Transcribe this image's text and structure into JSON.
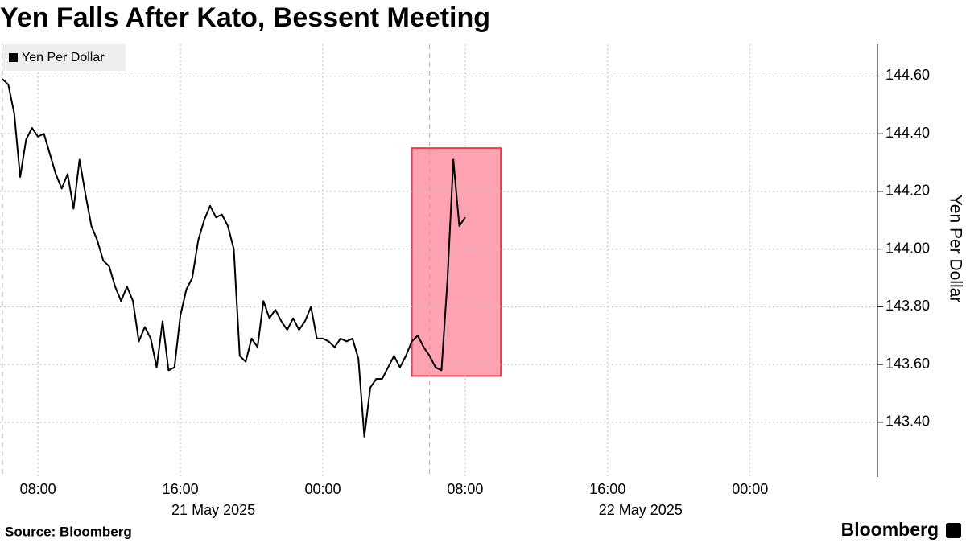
{
  "chart_data": {
    "type": "line",
    "title": "Yen Falls After Kato, Bessent Meeting",
    "y_label": "Yen Per Dollar",
    "source": "Source: Bloomberg",
    "brand": "Bloomberg",
    "legend": "upper left",
    "grid": true,
    "x": [
      "2025-05-21T06:00",
      "2025-05-21T06:20",
      "2025-05-21T06:40",
      "2025-05-21T07:00",
      "2025-05-21T07:20",
      "2025-05-21T07:40",
      "2025-05-21T08:00",
      "2025-05-21T08:20",
      "2025-05-21T08:40",
      "2025-05-21T09:00",
      "2025-05-21T09:20",
      "2025-05-21T09:40",
      "2025-05-21T10:00",
      "2025-05-21T10:20",
      "2025-05-21T10:40",
      "2025-05-21T11:00",
      "2025-05-21T11:20",
      "2025-05-21T11:40",
      "2025-05-21T12:00",
      "2025-05-21T12:20",
      "2025-05-21T12:40",
      "2025-05-21T13:00",
      "2025-05-21T13:20",
      "2025-05-21T13:40",
      "2025-05-21T14:00",
      "2025-05-21T14:20",
      "2025-05-21T14:40",
      "2025-05-21T15:00",
      "2025-05-21T15:20",
      "2025-05-21T15:40",
      "2025-05-21T16:00",
      "2025-05-21T16:20",
      "2025-05-21T16:40",
      "2025-05-21T17:00",
      "2025-05-21T17:20",
      "2025-05-21T17:40",
      "2025-05-21T18:00",
      "2025-05-21T18:20",
      "2025-05-21T18:40",
      "2025-05-21T19:00",
      "2025-05-21T19:20",
      "2025-05-21T19:40",
      "2025-05-21T20:00",
      "2025-05-21T20:20",
      "2025-05-21T20:40",
      "2025-05-21T21:00",
      "2025-05-21T21:20",
      "2025-05-21T21:40",
      "2025-05-21T22:00",
      "2025-05-21T22:20",
      "2025-05-21T22:40",
      "2025-05-21T23:00",
      "2025-05-21T23:20",
      "2025-05-21T23:40",
      "2025-05-22T00:00",
      "2025-05-22T00:20",
      "2025-05-22T00:40",
      "2025-05-22T01:00",
      "2025-05-22T01:20",
      "2025-05-22T01:40",
      "2025-05-22T02:00",
      "2025-05-22T02:20",
      "2025-05-22T02:40",
      "2025-05-22T03:00",
      "2025-05-22T03:20",
      "2025-05-22T03:40",
      "2025-05-22T04:00",
      "2025-05-22T04:20",
      "2025-05-22T04:40",
      "2025-05-22T05:00",
      "2025-05-22T05:20",
      "2025-05-22T05:40",
      "2025-05-22T06:00",
      "2025-05-22T06:20",
      "2025-05-22T06:40",
      "2025-05-22T07:00",
      "2025-05-22T07:20",
      "2025-05-22T07:40",
      "2025-05-22T08:00"
    ],
    "series": [
      {
        "name": "Yen Per Dollar",
        "color": "#000000",
        "values": [
          144.59,
          144.57,
          144.47,
          144.25,
          144.38,
          144.42,
          144.39,
          144.4,
          144.33,
          144.26,
          144.21,
          144.26,
          144.14,
          144.31,
          144.19,
          144.08,
          144.03,
          143.96,
          143.94,
          143.87,
          143.82,
          143.87,
          143.82,
          143.68,
          143.73,
          143.69,
          143.59,
          143.75,
          143.58,
          143.59,
          143.77,
          143.86,
          143.9,
          144.03,
          144.1,
          144.15,
          144.11,
          144.12,
          144.08,
          144.0,
          143.63,
          143.61,
          143.69,
          143.66,
          143.82,
          143.76,
          143.79,
          143.75,
          143.72,
          143.76,
          143.72,
          143.75,
          143.8,
          143.69,
          143.69,
          143.68,
          143.66,
          143.69,
          143.68,
          143.69,
          143.62,
          143.35,
          143.52,
          143.55,
          143.55,
          143.59,
          143.63,
          143.59,
          143.63,
          143.68,
          143.7,
          143.66,
          143.63,
          143.59,
          143.58,
          143.89,
          144.31,
          144.08,
          144.11
        ]
      }
    ],
    "xlim": [
      "2025-05-21T05:52",
      "2025-05-23T07:04"
    ],
    "xticks": [
      {
        "value": "2025-05-21T08:00",
        "label": "08:00"
      },
      {
        "value": "2025-05-21T16:00",
        "label": "16:00"
      },
      {
        "value": "2025-05-22T00:00",
        "label": "00:00"
      },
      {
        "value": "2025-05-22T08:00",
        "label": "08:00"
      },
      {
        "value": "2025-05-22T16:00",
        "label": "16:00"
      },
      {
        "value": "2025-05-23T00:00",
        "label": "00:00"
      }
    ],
    "x_date_labels": [
      "21 May 2025",
      "22 May 2025"
    ],
    "session_lines": [
      "2025-05-21T06:00",
      "2025-05-22T06:00"
    ],
    "ylim": [
      143.21,
      144.71
    ],
    "yticks": [
      {
        "value": 143.4,
        "label": "143.40"
      },
      {
        "value": 143.6,
        "label": "143.60"
      },
      {
        "value": 143.8,
        "label": "143.80"
      },
      {
        "value": 144.0,
        "label": "144.00"
      },
      {
        "value": 144.2,
        "label": "144.20"
      },
      {
        "value": 144.4,
        "label": "144.40"
      },
      {
        "value": 144.6,
        "label": "144.60"
      }
    ],
    "highlight": {
      "x": [
        "2025-05-22T05:00",
        "2025-05-22T10:00"
      ],
      "y": [
        143.56,
        144.35
      ],
      "color": "#ffa3b3",
      "edge_color": "#e0404f"
    }
  }
}
